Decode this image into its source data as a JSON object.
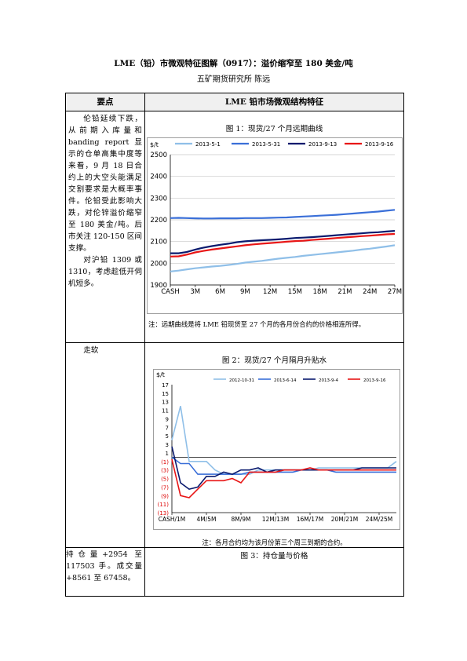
{
  "doc": {
    "title": "LME（铅）市微观特征图解（0917）：溢价缩窄至 180 美金/吨",
    "author": "五矿期货研究所    陈远"
  },
  "table": {
    "col1_header": "要点",
    "col2_header": "LME 铅市场微观结构特征",
    "rows": [
      {
        "left": [
          "伦铅延续下跌，从前期入库量和 banding report 显示的仓单高集中度等来看，9 月 18 日合约上的大空头能满足交割要求是大概率事件。伦铅受此影响大跌，对伦锌溢价缩窄至 180 美金/吨。后市关注 120-150 区间支撑。",
          "对沪铅 1309 或 1310，考虑趁低开伺机短多。"
        ],
        "caption": "图 1：现货/27 个月远期曲线",
        "note": "注：远期曲线是将 LME 铅现货至 27 个月的各月份合约的价格相连所得。"
      },
      {
        "left": [
          "走软"
        ],
        "caption": "图 2：现货/27 个月隔月升贴水",
        "note": "注：各月合约均为该月份第三个周三到期的合约。"
      },
      {
        "left": [
          "持仓量+2954 至 117503 手。成交量 +8561 至 67458。"
        ],
        "caption": "图 3：持仓量与价格"
      }
    ]
  },
  "chart_data": [
    {
      "type": "line",
      "unit_label": "$/t",
      "x": [
        "CASH",
        "1M",
        "2M",
        "3M",
        "4M",
        "5M",
        "6M",
        "7M",
        "8M",
        "9M",
        "10M",
        "11M",
        "12M",
        "13M",
        "14M",
        "15M",
        "16M",
        "17M",
        "18M",
        "19M",
        "20M",
        "21M",
        "22M",
        "23M",
        "24M",
        "25M",
        "26M",
        "27M"
      ],
      "x_tick_labels": [
        "CASH",
        "3M",
        "6M",
        "9M",
        "12M",
        "15M",
        "18M",
        "21M",
        "24M",
        "27M"
      ],
      "ylim": [
        1900,
        2500
      ],
      "y_ticks": [
        1900,
        2000,
        2100,
        2200,
        2300,
        2400,
        2500
      ],
      "grid": true,
      "legend": "top",
      "series": [
        {
          "name": "2013-5-1",
          "color": "#8fbfe8",
          "values": [
            1962,
            1966,
            1972,
            1977,
            1981,
            1985,
            1988,
            1992,
            1997,
            2003,
            2007,
            2011,
            2016,
            2021,
            2025,
            2029,
            2034,
            2038,
            2042,
            2046,
            2050,
            2054,
            2058,
            2063,
            2067,
            2072,
            2077,
            2083
          ]
        },
        {
          "name": "2013-5-31",
          "color": "#3a6fd8",
          "values": [
            2208,
            2209,
            2208,
            2207,
            2206,
            2206,
            2207,
            2207,
            2207,
            2208,
            2208,
            2208,
            2209,
            2210,
            2211,
            2213,
            2215,
            2217,
            2219,
            2221,
            2223,
            2226,
            2229,
            2232,
            2235,
            2238,
            2242,
            2246
          ]
        },
        {
          "name": "2013-9-13",
          "color": "#0a1a6e",
          "values": [
            2046,
            2046,
            2052,
            2063,
            2072,
            2079,
            2085,
            2090,
            2097,
            2101,
            2104,
            2106,
            2108,
            2110,
            2113,
            2116,
            2118,
            2120,
            2123,
            2126,
            2129,
            2132,
            2135,
            2138,
            2141,
            2143,
            2146,
            2149
          ]
        },
        {
          "name": "2013-9-16",
          "color": "#e81616",
          "values": [
            2031,
            2032,
            2040,
            2050,
            2057,
            2063,
            2068,
            2073,
            2078,
            2083,
            2087,
            2090,
            2093,
            2096,
            2099,
            2102,
            2104,
            2107,
            2110,
            2113,
            2116,
            2119,
            2122,
            2125,
            2127,
            2130,
            2133,
            2135
          ]
        }
      ]
    },
    {
      "type": "line",
      "unit_label": "$/t",
      "x": [
        "CASH/1M",
        "1M/2M",
        "2M/3M",
        "3M/4M",
        "4M/5M",
        "5M/6M",
        "6M/7M",
        "7M/8M",
        "8M/9M",
        "9M/10M",
        "10M/11M",
        "11M/12M",
        "12M/13M",
        "13M/14M",
        "14M/15M",
        "15M/16M",
        "16M/17M",
        "17M/18M",
        "18M/19M",
        "19M/20M",
        "20M/21M",
        "21M/22M",
        "22M/23M",
        "23M/24M",
        "24M/25M",
        "25M/26M",
        "26M/27M"
      ],
      "x_tick_labels": [
        "CASH/1M",
        "4M/5M",
        "8M/9M",
        "12M/13M",
        "16M/17M",
        "20M/21M",
        "24M/25M"
      ],
      "ylim": [
        -13,
        17
      ],
      "y_ticks": [
        17,
        15,
        13,
        11,
        9,
        7,
        5,
        3,
        1,
        -1,
        -3,
        -5,
        -7,
        -9,
        -11,
        -13
      ],
      "y_tick_labels": [
        "17",
        "15",
        "13",
        "11",
        "9",
        "7",
        "5",
        "3",
        "1",
        "(1)",
        "(3)",
        "(5)",
        "(7)",
        "(9)",
        "(11)",
        "(13)"
      ],
      "legend": "top",
      "series": [
        {
          "name": "2012-10-31",
          "color": "#8fbfe8",
          "values": [
            4,
            12,
            -1,
            -1,
            -1,
            -3,
            -4,
            -4,
            -4,
            -4,
            -3,
            -3,
            -3,
            -3,
            -3,
            -3,
            -3,
            -2.5,
            -2.5,
            -2.5,
            -2.5,
            -2.5,
            -2.5,
            -2.5,
            -2.5,
            -2.5,
            -1
          ]
        },
        {
          "name": "2013-6-14",
          "color": "#3a6fd8",
          "values": [
            0,
            -1.5,
            -1.5,
            -4,
            -4,
            -4,
            -4,
            -4,
            -4,
            -3.5,
            -3.5,
            -3.5,
            -3.5,
            -3.5,
            -3.5,
            -3,
            -3,
            -3,
            -3,
            -3.5,
            -3.5,
            -3.5,
            -3.5,
            -3.5,
            -3.5,
            -3.5,
            -3.5
          ]
        },
        {
          "name": "2013-9-4",
          "color": "#0a1a6e",
          "values": [
            2.5,
            -6,
            -7.5,
            -7,
            -4.5,
            -4.5,
            -3.5,
            -4,
            -3,
            -3,
            -2.5,
            -3.5,
            -3,
            -3,
            -3,
            -3,
            -3,
            -3,
            -3,
            -3,
            -3,
            -3,
            -2.5,
            -2.5,
            -2.5,
            -2.5,
            -2.5
          ]
        },
        {
          "name": "2013-9-16",
          "color": "#e81616",
          "values": [
            -0.5,
            -9,
            -9.5,
            -7.5,
            -5.5,
            -5.5,
            -5.5,
            -5,
            -6,
            -3.5,
            -3.5,
            -3.5,
            -3.5,
            -3,
            -3,
            -3,
            -2.5,
            -3,
            -3,
            -3,
            -3,
            -3,
            -3,
            -3,
            -3,
            -3,
            -3
          ]
        }
      ]
    }
  ]
}
